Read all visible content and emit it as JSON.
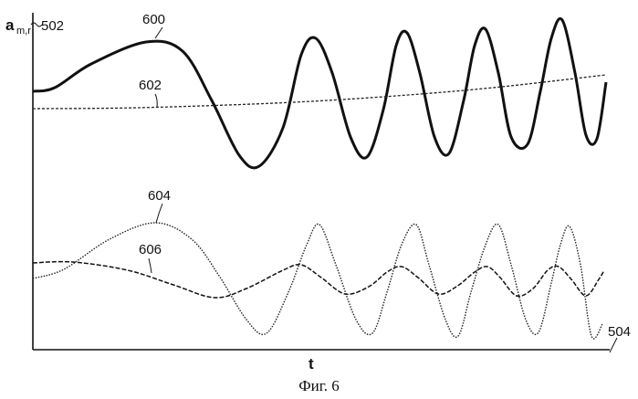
{
  "figure": {
    "caption": "Фиг. 6",
    "y_axis": {
      "symbol": "a",
      "subscript": "m,r",
      "ref": "502"
    },
    "x_axis": {
      "symbol": "t",
      "ref": "504"
    },
    "curve_labels": [
      "600",
      "602",
      "604",
      "606"
    ]
  }
}
